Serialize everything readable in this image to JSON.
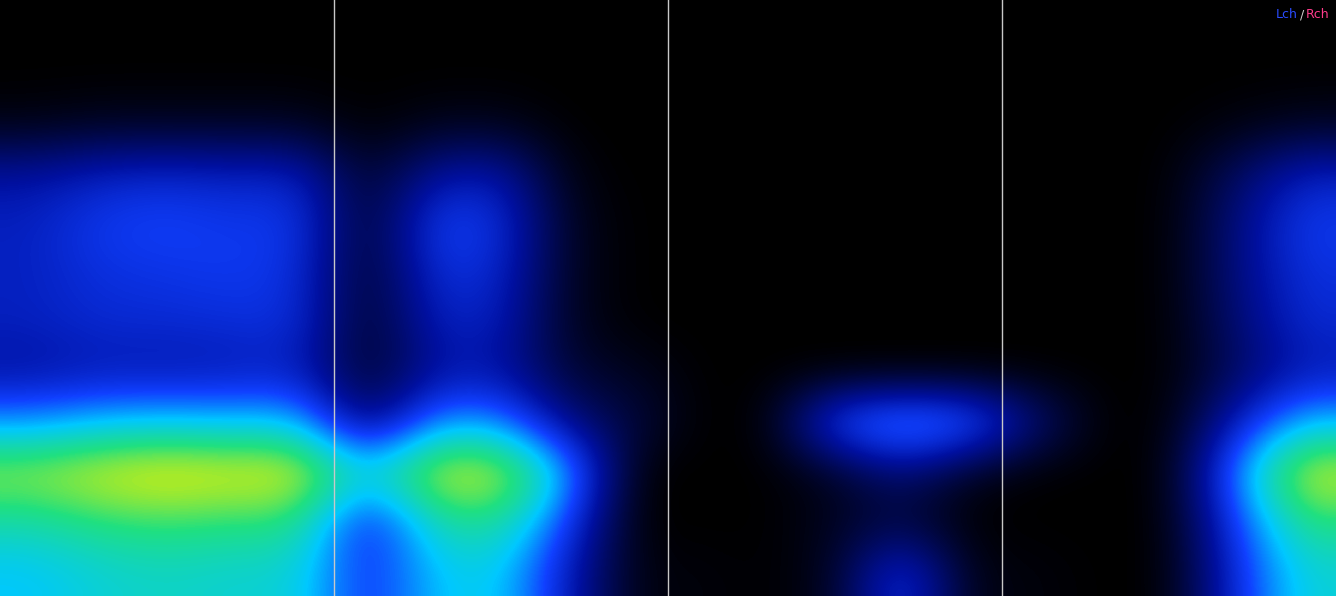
{
  "chart_data": {
    "type": "heatmap",
    "tick_labels": false,
    "xlim": [
      0,
      20
    ],
    "ylim": [
      0,
      12
    ],
    "color_range": [
      0,
      1
    ],
    "vlines": [
      5,
      10,
      15
    ],
    "separator": "/",
    "series": [
      {
        "name": "Lch",
        "color": "#2a4cff"
      },
      {
        "name": "Rch",
        "color": "#ff3c8c"
      }
    ],
    "cells": [
      [
        0,
        0,
        0.03,
        0.25,
        0.3,
        0.3,
        0.3,
        0.25,
        0.5,
        0.8,
        0.65,
        0.55
      ],
      [
        0,
        0,
        0.05,
        0.3,
        0.38,
        0.35,
        0.33,
        0.28,
        0.55,
        0.85,
        0.7,
        0.6
      ],
      [
        0,
        0,
        0.05,
        0.32,
        0.4,
        0.36,
        0.33,
        0.27,
        0.57,
        0.88,
        0.72,
        0.62
      ],
      [
        0,
        0,
        0.05,
        0.3,
        0.37,
        0.38,
        0.34,
        0.28,
        0.55,
        0.86,
        0.7,
        0.6
      ],
      [
        0,
        0,
        0.05,
        0.31,
        0.38,
        0.35,
        0.35,
        0.3,
        0.56,
        0.87,
        0.7,
        0.6
      ],
      [
        0,
        0,
        0,
        0.05,
        0.05,
        0.05,
        0.05,
        0.05,
        0.15,
        0.6,
        0.3,
        0.35
      ],
      [
        0,
        0,
        0.04,
        0.25,
        0.4,
        0.35,
        0.3,
        0.25,
        0.5,
        0.85,
        0.65,
        0.55
      ],
      [
        0,
        0,
        0.04,
        0.28,
        0.36,
        0.33,
        0.3,
        0.26,
        0.5,
        0.85,
        0.68,
        0.58
      ],
      [
        0,
        0,
        0,
        0.02,
        0.05,
        0.05,
        0.05,
        0.08,
        0.2,
        0.55,
        0.4,
        0.3
      ],
      [
        0,
        0,
        0,
        0,
        0,
        0,
        0,
        0.05,
        0.1,
        0,
        0,
        0.02
      ],
      [
        0,
        0,
        0,
        0,
        0,
        0,
        0,
        0,
        0,
        0,
        0,
        0.02
      ],
      [
        0,
        0,
        0,
        0,
        0,
        0,
        0,
        0,
        0,
        0,
        0,
        0
      ],
      [
        0,
        0,
        0,
        0,
        0,
        0,
        0,
        0,
        0.45,
        0.05,
        0.05,
        0.05
      ],
      [
        0,
        0,
        0,
        0,
        0,
        0,
        0,
        0,
        0.55,
        0.2,
        0.1,
        0.4
      ],
      [
        0,
        0,
        0,
        0,
        0,
        0,
        0,
        0,
        0.5,
        0.05,
        0,
        0.03
      ],
      [
        0,
        0,
        0,
        0,
        0,
        0,
        0,
        0,
        0.2,
        0,
        0,
        0.02
      ],
      [
        0,
        0,
        0,
        0,
        0,
        0,
        0,
        0,
        0,
        0,
        0,
        0
      ],
      [
        0,
        0,
        0,
        0,
        0,
        0,
        0,
        0,
        0,
        0,
        0,
        0
      ],
      [
        0,
        0,
        0.02,
        0.15,
        0.2,
        0.2,
        0.18,
        0.15,
        0.3,
        0.5,
        0.4,
        0.35
      ],
      [
        0,
        0,
        0.05,
        0.3,
        0.38,
        0.35,
        0.33,
        0.28,
        0.55,
        0.85,
        0.7,
        0.6
      ]
    ]
  }
}
